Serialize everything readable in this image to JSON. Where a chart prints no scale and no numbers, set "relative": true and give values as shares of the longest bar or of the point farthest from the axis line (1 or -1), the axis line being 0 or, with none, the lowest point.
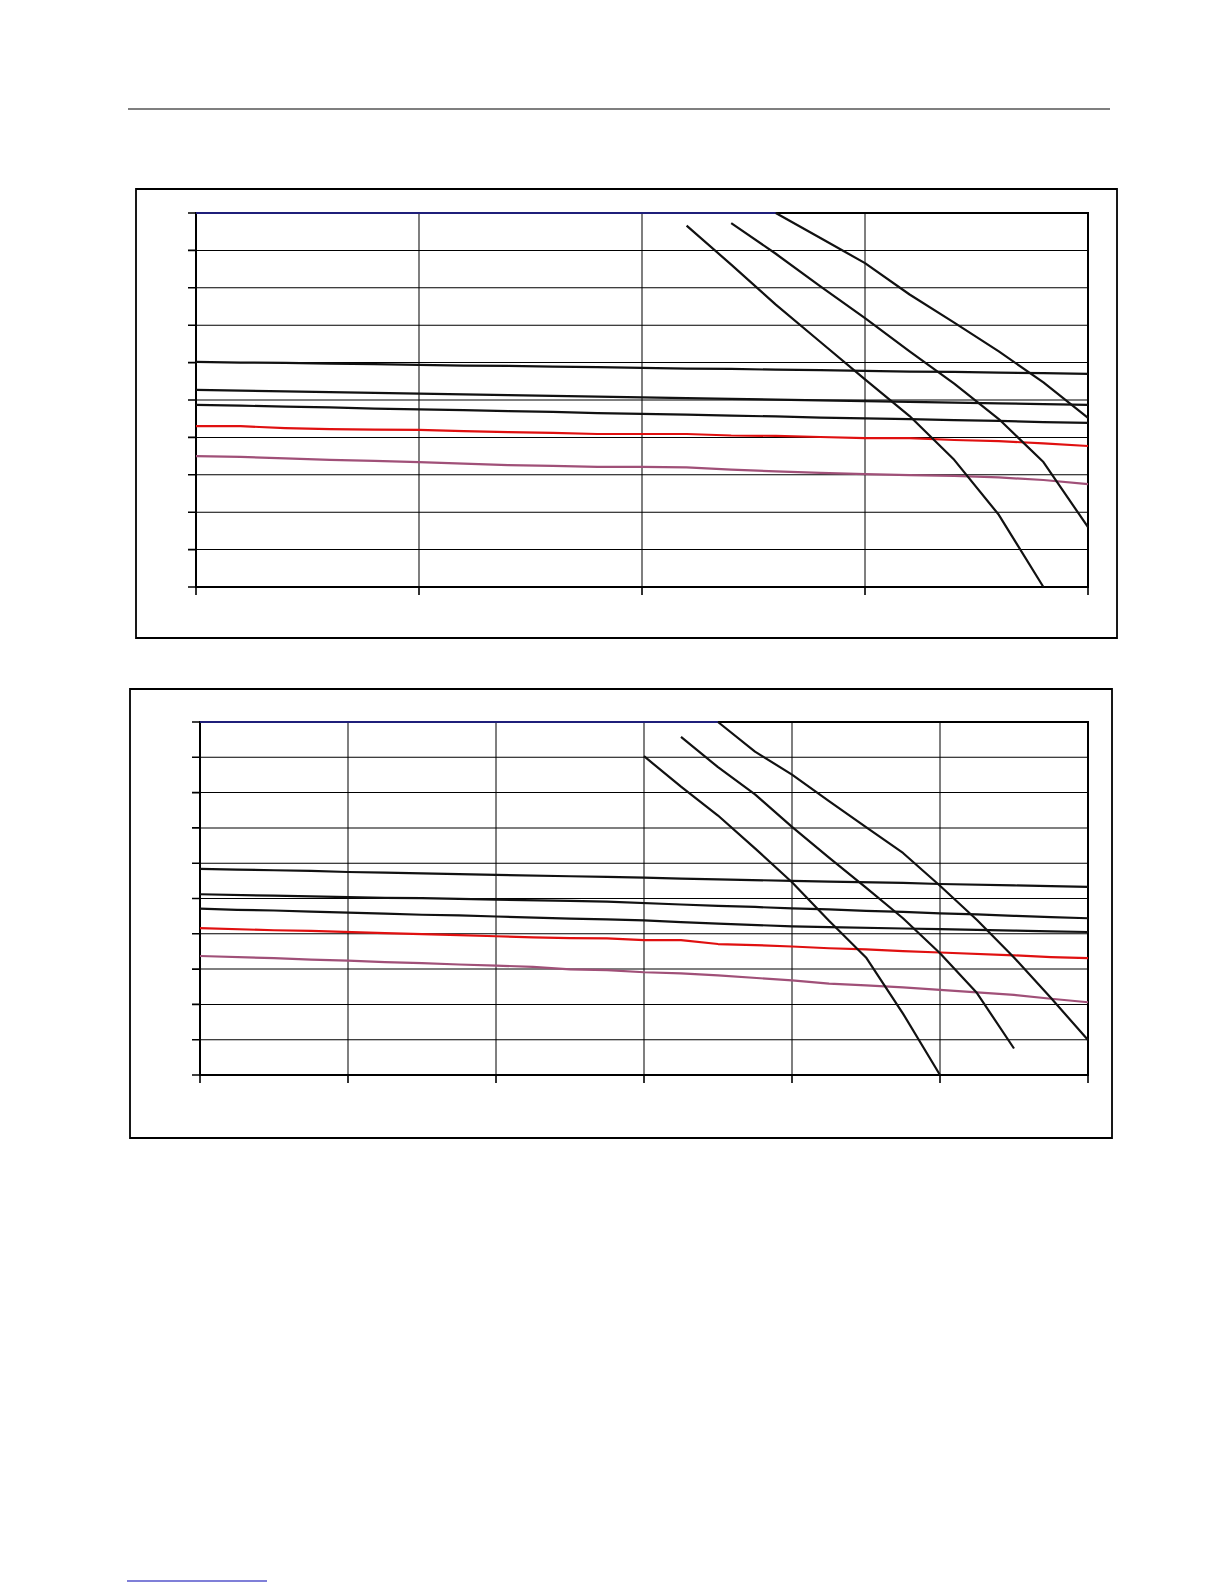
{
  "chart_data": [
    {
      "type": "line",
      "relative": true,
      "grid": true,
      "marker": "none",
      "line_style": "solid",
      "categories": [
        null,
        null,
        null,
        null,
        null,
        null,
        null,
        null,
        null,
        null,
        null,
        null,
        null,
        null,
        null,
        null,
        null,
        null,
        null,
        null,
        null
      ],
      "series": [
        {
          "color": "#1f1f7a",
          "values": [
            1,
            1,
            1,
            1,
            1,
            1,
            1,
            1,
            1,
            1,
            1,
            1,
            1,
            1,
            null,
            null,
            null,
            null,
            null,
            null,
            null
          ]
        },
        {
          "color": "#111111",
          "values": [
            0.602,
            0.6,
            0.599,
            0.597,
            0.596,
            0.594,
            0.592,
            0.591,
            0.589,
            0.588,
            0.586,
            0.584,
            0.583,
            0.581,
            0.58,
            0.578,
            0.576,
            0.575,
            0.573,
            0.572,
            0.57
          ]
        },
        {
          "color": "#111111",
          "values": [
            0.527,
            0.525,
            0.523,
            0.521,
            0.519,
            0.517,
            0.515,
            0.513,
            0.511,
            0.509,
            0.507,
            0.505,
            0.503,
            0.501,
            0.499,
            0.497,
            0.495,
            0.493,
            0.491,
            0.489,
            0.487
          ]
        },
        {
          "color": "#111111",
          "values": [
            0.487,
            0.485,
            0.482,
            0.48,
            0.477,
            0.475,
            0.473,
            0.47,
            0.468,
            0.465,
            0.463,
            0.461,
            0.458,
            0.456,
            0.453,
            0.451,
            0.449,
            0.446,
            0.444,
            0.441,
            0.439
          ]
        },
        {
          "color": "#e01010",
          "values": [
            0.43,
            0.43,
            0.425,
            0.422,
            0.421,
            0.42,
            0.417,
            0.414,
            0.412,
            0.409,
            0.409,
            0.409,
            0.405,
            0.404,
            0.401,
            0.398,
            0.398,
            0.393,
            0.39,
            0.384,
            0.377
          ]
        },
        {
          "color": "#a05078",
          "values": [
            0.35,
            0.348,
            0.344,
            0.34,
            0.337,
            0.334,
            0.33,
            0.326,
            0.324,
            0.321,
            0.321,
            0.32,
            0.314,
            0.309,
            0.305,
            0.302,
            0.299,
            0.297,
            0.293,
            0.286,
            0.275
          ]
        },
        {
          "color": "#111111",
          "values": [
            null,
            null,
            null,
            null,
            null,
            null,
            null,
            null,
            null,
            null,
            null,
            0.966,
            0.862,
            0.755,
            0.655,
            0.555,
            0.457,
            0.34,
            0.193,
            0.0,
            null
          ]
        },
        {
          "color": "#111111",
          "values": [
            null,
            null,
            null,
            null,
            null,
            null,
            null,
            null,
            null,
            null,
            null,
            null,
            0.973,
            0.891,
            0.804,
            0.719,
            0.63,
            0.544,
            0.449,
            0.334,
            0.16
          ]
        },
        {
          "color": "#111111",
          "values": [
            null,
            null,
            null,
            null,
            null,
            null,
            null,
            null,
            null,
            null,
            null,
            null,
            null,
            1,
            0.933,
            0.866,
            0.782,
            0.707,
            0.63,
            0.547,
            0.452
          ]
        }
      ]
    },
    {
      "type": "line",
      "relative": true,
      "grid": true,
      "marker": "none",
      "line_style": "solid",
      "categories": [
        null,
        null,
        null,
        null,
        null,
        null,
        null,
        null,
        null,
        null,
        null,
        null,
        null,
        null,
        null,
        null,
        null,
        null,
        null,
        null,
        null,
        null,
        null,
        null,
        null
      ],
      "series": [
        {
          "color": "#1f1f7a",
          "values": [
            1,
            1,
            1,
            1,
            1,
            1,
            1,
            1,
            1,
            1,
            1,
            1,
            1,
            1,
            1,
            null,
            null,
            null,
            null,
            null,
            null,
            null,
            null,
            null,
            null
          ]
        },
        {
          "color": "#111111",
          "values": [
            0.584,
            0.582,
            0.58,
            0.578,
            0.575,
            0.573,
            0.571,
            0.569,
            0.567,
            0.565,
            0.563,
            0.561,
            0.559,
            0.556,
            0.554,
            0.552,
            0.55,
            0.548,
            0.546,
            0.544,
            0.541,
            0.539,
            0.537,
            0.535,
            0.533
          ]
        },
        {
          "color": "#111111",
          "values": [
            0.512,
            0.51,
            0.508,
            0.506,
            0.504,
            0.502,
            0.501,
            0.499,
            0.497,
            0.495,
            0.493,
            0.491,
            0.487,
            0.483,
            0.479,
            0.476,
            0.472,
            0.469,
            0.465,
            0.462,
            0.458,
            0.455,
            0.451,
            0.447,
            0.444
          ]
        },
        {
          "color": "#111111",
          "values": [
            0.471,
            0.468,
            0.466,
            0.463,
            0.46,
            0.457,
            0.454,
            0.452,
            0.449,
            0.446,
            0.443,
            0.441,
            0.438,
            0.433,
            0.429,
            0.425,
            0.421,
            0.419,
            0.417,
            0.415,
            0.413,
            0.411,
            0.409,
            0.407,
            0.405
          ]
        },
        {
          "color": "#e01010",
          "values": [
            0.416,
            0.413,
            0.41,
            0.408,
            0.405,
            0.402,
            0.399,
            0.396,
            0.393,
            0.39,
            0.388,
            0.387,
            0.382,
            0.382,
            0.371,
            0.368,
            0.364,
            0.359,
            0.356,
            0.351,
            0.347,
            0.343,
            0.339,
            0.334,
            0.331
          ]
        },
        {
          "color": "#a05078",
          "values": [
            0.337,
            0.334,
            0.331,
            0.327,
            0.324,
            0.32,
            0.317,
            0.313,
            0.31,
            0.306,
            0.299,
            0.297,
            0.291,
            0.288,
            0.282,
            0.275,
            0.268,
            0.259,
            0.254,
            0.248,
            0.241,
            0.234,
            0.227,
            0.216,
            0.206
          ]
        },
        {
          "color": "#111111",
          "values": [
            null,
            null,
            null,
            null,
            null,
            null,
            null,
            null,
            null,
            null,
            null,
            null,
            0.903,
            0.817,
            0.735,
            0.642,
            0.546,
            0.437,
            0.333,
            0.174,
            0.0,
            null,
            null,
            null,
            null
          ]
        },
        {
          "color": "#111111",
          "values": [
            null,
            null,
            null,
            null,
            null,
            null,
            null,
            null,
            null,
            null,
            null,
            null,
            null,
            0.958,
            0.872,
            0.795,
            0.703,
            0.616,
            0.531,
            0.444,
            0.345,
            0.232,
            0.075,
            null,
            null
          ]
        },
        {
          "color": "#111111",
          "values": [
            null,
            null,
            null,
            null,
            null,
            null,
            null,
            null,
            null,
            null,
            null,
            null,
            null,
            null,
            1,
            0.916,
            0.851,
            0.776,
            0.702,
            0.629,
            0.536,
            0.439,
            0.333,
            0.218,
            0.099
          ]
        }
      ]
    }
  ]
}
